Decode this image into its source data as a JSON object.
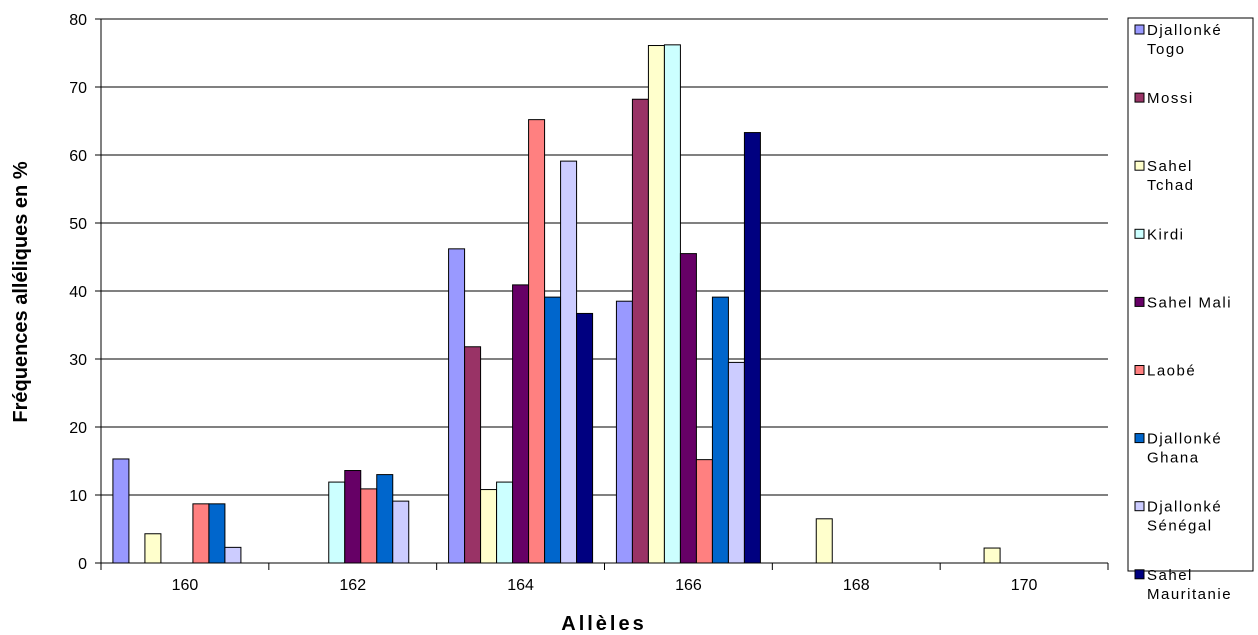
{
  "chart_data": {
    "type": "bar",
    "xlabel": "Allèles",
    "ylabel": "Fréquences alléliques en %",
    "ylim": [
      0,
      80
    ],
    "yticks": [
      "0",
      "10",
      "20",
      "30",
      "40",
      "50",
      "60",
      "70",
      "80"
    ],
    "categories": [
      "160",
      "162",
      "164",
      "166",
      "168",
      "170"
    ],
    "grid": true,
    "legend_position": "right",
    "series": [
      {
        "name": "Djallonké Togo",
        "legend_lines": [
          "Djallonké",
          "Togo"
        ],
        "color": "#9999ff",
        "values": [
          15.3,
          0,
          46.2,
          38.5,
          0,
          0
        ]
      },
      {
        "name": "Mossi",
        "legend_lines": [
          "Mossi"
        ],
        "color": "#993366",
        "values": [
          0,
          0,
          31.8,
          68.2,
          0,
          0
        ]
      },
      {
        "name": "Sahel Tchad",
        "legend_lines": [
          "Sahel",
          "Tchad"
        ],
        "color": "#ffffcc",
        "values": [
          4.3,
          0,
          10.8,
          76.1,
          6.5,
          2.2
        ]
      },
      {
        "name": "Kirdi",
        "legend_lines": [
          "Kirdi"
        ],
        "color": "#ccffff",
        "values": [
          0,
          11.9,
          11.9,
          76.2,
          0,
          0
        ]
      },
      {
        "name": "Sahel Mali",
        "legend_lines": [
          "Sahel Mali"
        ],
        "color": "#660066",
        "values": [
          0,
          13.6,
          40.9,
          45.5,
          0,
          0
        ]
      },
      {
        "name": "Laobé",
        "legend_lines": [
          "Laobé"
        ],
        "color": "#ff8080",
        "values": [
          8.7,
          10.9,
          65.2,
          15.2,
          0,
          0
        ]
      },
      {
        "name": "Djallonké Ghana",
        "legend_lines": [
          "Djallonké",
          "Ghana"
        ],
        "color": "#0066cc",
        "values": [
          8.7,
          13.0,
          39.1,
          39.1,
          0,
          0
        ]
      },
      {
        "name": "Djallonké Sénégal",
        "legend_lines": [
          "Djallonké",
          "Sénégal"
        ],
        "color": "#ccccff",
        "values": [
          2.3,
          9.1,
          59.1,
          29.5,
          0,
          0
        ]
      },
      {
        "name": "Sahel Mauritanie",
        "legend_lines": [
          "Sahel",
          "Mauritanie"
        ],
        "color": "#000080",
        "values": [
          0,
          0,
          36.7,
          63.3,
          0,
          0
        ]
      }
    ]
  }
}
